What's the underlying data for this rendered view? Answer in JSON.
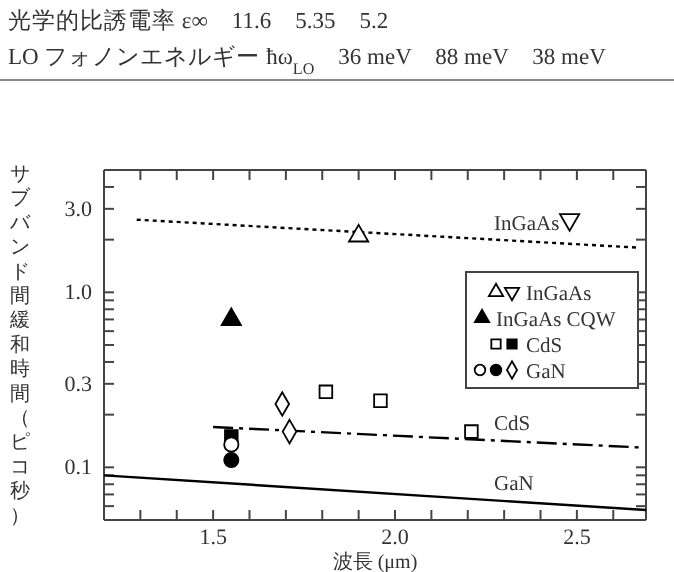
{
  "chart_data": {
    "type": "scatter",
    "xlabel": "波長 (μm)",
    "ylabel": "サブバンド間緩和時間（ピコ秒）",
    "log": "y",
    "annotations": [
      "光学的比誘電率 ε∞　11.6　5.35　5.2",
      "LO フォノンエネルギー ħω$_{LO}$　36 meV　88 meV　38 meV"
    ],
    "xlim": [
      1.2,
      2.69
    ],
    "ylim": [
      0.05,
      5
    ],
    "xticks": [
      {
        "value": 1.3,
        "label": null
      },
      {
        "value": 1.4,
        "label": null
      },
      {
        "value": 1.5,
        "label": "1.5"
      },
      {
        "value": 1.6,
        "label": null
      },
      {
        "value": 1.7,
        "label": null
      },
      {
        "value": 1.8,
        "label": null
      },
      {
        "value": 1.9,
        "label": null
      },
      {
        "value": 2.0,
        "label": "2.0"
      },
      {
        "value": 2.1,
        "label": null
      },
      {
        "value": 2.2,
        "label": null
      },
      {
        "value": 2.3,
        "label": null
      },
      {
        "value": 2.4,
        "label": null
      },
      {
        "value": 2.5,
        "label": "2.5"
      },
      {
        "value": 2.6,
        "label": null
      }
    ],
    "yticks": [
      {
        "value": 0.06,
        "label": null
      },
      {
        "value": 0.07,
        "label": null
      },
      {
        "value": 0.08,
        "label": null
      },
      {
        "value": 0.09,
        "label": null
      },
      {
        "value": 0.1,
        "label": "0.1"
      },
      {
        "value": 0.2,
        "label": null
      },
      {
        "value": 0.3,
        "label": "0.3"
      },
      {
        "value": 0.4,
        "label": null
      },
      {
        "value": 0.5,
        "label": null
      },
      {
        "value": 0.6,
        "label": null
      },
      {
        "value": 0.7,
        "label": null
      },
      {
        "value": 0.8,
        "label": null
      },
      {
        "value": 0.9,
        "label": null
      },
      {
        "value": 1,
        "label": "1.0"
      },
      {
        "value": 2,
        "label": null
      },
      {
        "value": 3,
        "label": "3.0"
      },
      {
        "value": 4,
        "label": null
      }
    ],
    "grid": false,
    "legend": "top right",
    "series": [
      {
        "name": "InGaAs",
        "type": "line",
        "line_style": "dotted",
        "color": "#000000",
        "x": [
          1.29,
          2.67
        ],
        "values": [
          2.6,
          1.8
        ]
      },
      {
        "name": "CdS",
        "type": "line",
        "line_style": "dashdot",
        "color": "#000000",
        "x": [
          1.5,
          2.67
        ],
        "values": [
          0.17,
          0.13
        ]
      },
      {
        "name": "GaN",
        "type": "line",
        "line_style": "solid",
        "color": "#000000",
        "x": [
          1.2,
          2.69
        ],
        "values": [
          0.09,
          0.057
        ]
      },
      {
        "marker": "triangle",
        "color": "#ffffff",
        "x": [
          1.9
        ],
        "values": [
          2.1
        ]
      },
      {
        "name": "InGaAs",
        "marker": "triangle-down",
        "color": "#ffffff",
        "x": [
          2.48
        ],
        "values": [
          2.6
        ]
      },
      {
        "name": "InGaAs CQW",
        "marker": "triangle",
        "color": "#000000",
        "x": [
          1.55
        ],
        "values": [
          0.7
        ]
      },
      {
        "marker": "square",
        "color": "#ffffff",
        "x": [
          1.81,
          1.96,
          2.21
        ],
        "values": [
          0.27,
          0.24,
          0.16
        ]
      },
      {
        "name": "CdS",
        "marker": "square",
        "color": "#000000",
        "x": [
          1.55
        ],
        "values": [
          0.15
        ]
      },
      {
        "marker": "circle",
        "color": "#ffffff",
        "x": [
          1.55
        ],
        "values": [
          0.135
        ]
      },
      {
        "marker": "circle",
        "color": "#000000",
        "x": [
          1.55
        ],
        "values": [
          0.11
        ]
      },
      {
        "name": "GaN",
        "marker": "diamond",
        "color": "#ffffff",
        "x": [
          1.69,
          1.71
        ],
        "values": [
          0.23,
          0.16
        ]
      }
    ]
  }
}
